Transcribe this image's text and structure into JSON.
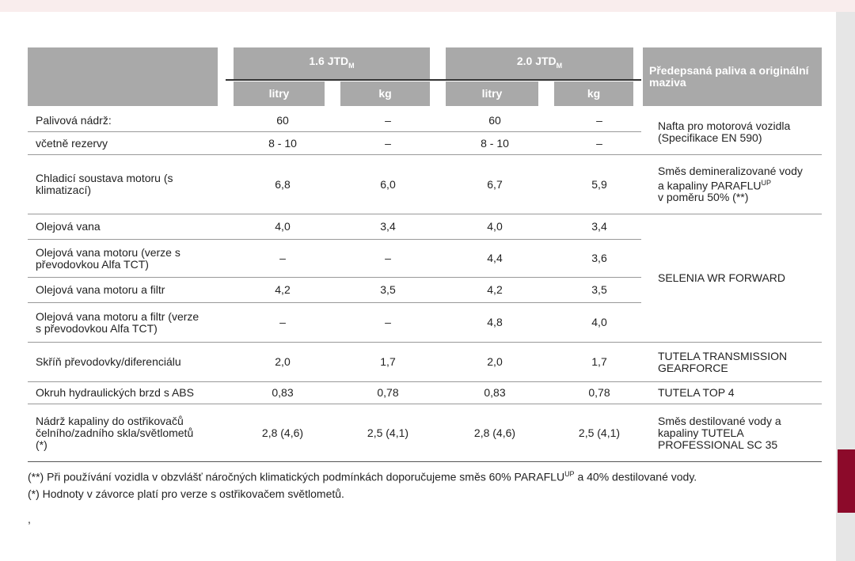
{
  "table": {
    "header": {
      "groups": [
        {
          "label": "1.6 JTD",
          "sub": "M",
          "columns": [
            "litry",
            "kg"
          ]
        },
        {
          "label": "2.0 JTD",
          "sub": "M",
          "columns": [
            "litry",
            "kg"
          ]
        }
      ],
      "fluids": "Předepsaná paliva a originální maziva"
    },
    "rows": [
      {
        "label": [
          "Palivová nádrž:"
        ],
        "values": [
          "60",
          "–",
          "60",
          "–"
        ]
      },
      {
        "label": [
          "včetně rezervy"
        ],
        "values": [
          "8 - 10",
          "–",
          "8 - 10",
          "–"
        ]
      },
      {
        "label": [
          "Chladicí soustava motoru (s",
          "klimatizací)"
        ],
        "values": [
          "6,8",
          "6,0",
          "6,7",
          "5,9"
        ]
      },
      {
        "label": [
          "Olejová vana"
        ],
        "values": [
          "4,0",
          "3,4",
          "4,0",
          "3,4"
        ]
      },
      {
        "label": [
          "Olejová vana motoru (verze s",
          "převodovkou Alfa TCT)"
        ],
        "values": [
          "–",
          "–",
          "4,4",
          "3,6"
        ]
      },
      {
        "label": [
          "Olejová vana motoru a filtr"
        ],
        "values": [
          "4,2",
          "3,5",
          "4,2",
          "3,5"
        ]
      },
      {
        "label": [
          "Olejová vana motoru a filtr (verze",
          "s převodovkou Alfa TCT)"
        ],
        "values": [
          "–",
          "–",
          "4,8",
          "4,0"
        ]
      },
      {
        "label": [
          "Skříň převodovky/diferenciálu"
        ],
        "values": [
          "2,0",
          "1,7",
          "2,0",
          "1,7"
        ]
      },
      {
        "label": [
          "Okruh hydraulických brzd s ABS"
        ],
        "values": [
          "0,83",
          "0,78",
          "0,83",
          "0,78"
        ]
      },
      {
        "label": [
          "Nádrž kapaliny do ostřikovačů",
          "čelního/zadního skla/světlometů",
          "(*)"
        ],
        "values": [
          "2,8 (4,6)",
          "2,5 (4,1)",
          "2,8 (4,6)",
          "2,5 (4,1)"
        ]
      }
    ],
    "fluids": [
      {
        "lines": [
          {
            "text": "Nafta pro motorová vozidla"
          },
          {
            "text": "(Specifikace EN 590)"
          }
        ]
      },
      {
        "lines": [
          {
            "text": "Směs demineralizované vody"
          },
          {
            "text": "a kapaliny PARAFLU",
            "sup": "UP"
          },
          {
            "text": "v poměru 50% (**)"
          }
        ]
      },
      {
        "lines": [
          {
            "text": "SELENIA WR FORWARD"
          }
        ]
      },
      {
        "lines": [
          {
            "text": "TUTELA TRANSMISSION"
          },
          {
            "text": "GEARFORCE"
          }
        ]
      },
      {
        "lines": [
          {
            "text": "TUTELA TOP 4"
          }
        ]
      },
      {
        "lines": [
          {
            "text": "Směs destilované vody a"
          },
          {
            "text": "kapaliny TUTELA"
          },
          {
            "text": "PROFESSIONAL SC 35"
          }
        ]
      }
    ]
  },
  "footnotes": [
    {
      "text": "(**) Při používání vozidla v obzvlášť náročných klimatických podmínkách doporučujeme směs 60% PARAFLU",
      "sup": "UP",
      "after": " a 40% destilované vody."
    },
    {
      "text": "(*) Hodnoty v závorce platí pro verze s ostřikovačem světlometů."
    }
  ],
  "stray_mark": ","
}
